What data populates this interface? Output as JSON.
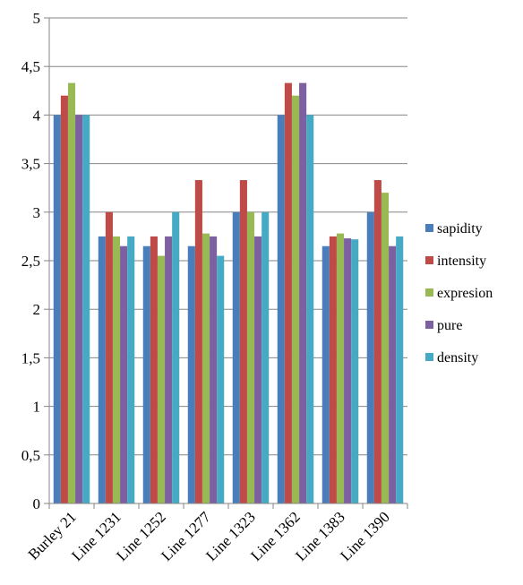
{
  "chart_data": {
    "type": "bar",
    "title": "",
    "xlabel": "",
    "ylabel": "",
    "ylim": [
      0,
      5
    ],
    "yticks": [
      "0",
      "0,5",
      "1",
      "1,5",
      "2",
      "2,5",
      "3",
      "3,5",
      "4",
      "4,5",
      "5"
    ],
    "categories": [
      "Burley 21",
      "Line 1231",
      "Line 1252",
      "Line 1277",
      "Line 1323",
      "Line 1362",
      "Line 1383",
      "Line 1390"
    ],
    "series": [
      {
        "name": "sapidity",
        "color": "#4a7ebb",
        "values": [
          4.0,
          2.75,
          2.65,
          2.65,
          3.0,
          4.0,
          2.65,
          3.0
        ]
      },
      {
        "name": "intensity",
        "color": "#be4b48",
        "values": [
          4.2,
          3.0,
          2.75,
          3.33,
          3.33,
          4.33,
          2.75,
          3.33
        ]
      },
      {
        "name": "expresion",
        "color": "#98b954",
        "values": [
          4.33,
          2.75,
          2.55,
          2.78,
          3.0,
          4.2,
          2.78,
          3.2
        ]
      },
      {
        "name": "pure",
        "color": "#7d60a0",
        "values": [
          4.0,
          2.65,
          2.75,
          2.75,
          2.75,
          4.33,
          2.73,
          2.65
        ]
      },
      {
        "name": "density",
        "color": "#46aac5",
        "values": [
          4.0,
          2.75,
          3.0,
          2.55,
          3.0,
          4.0,
          2.72,
          2.75
        ]
      }
    ],
    "grid": true,
    "legend": "right"
  }
}
